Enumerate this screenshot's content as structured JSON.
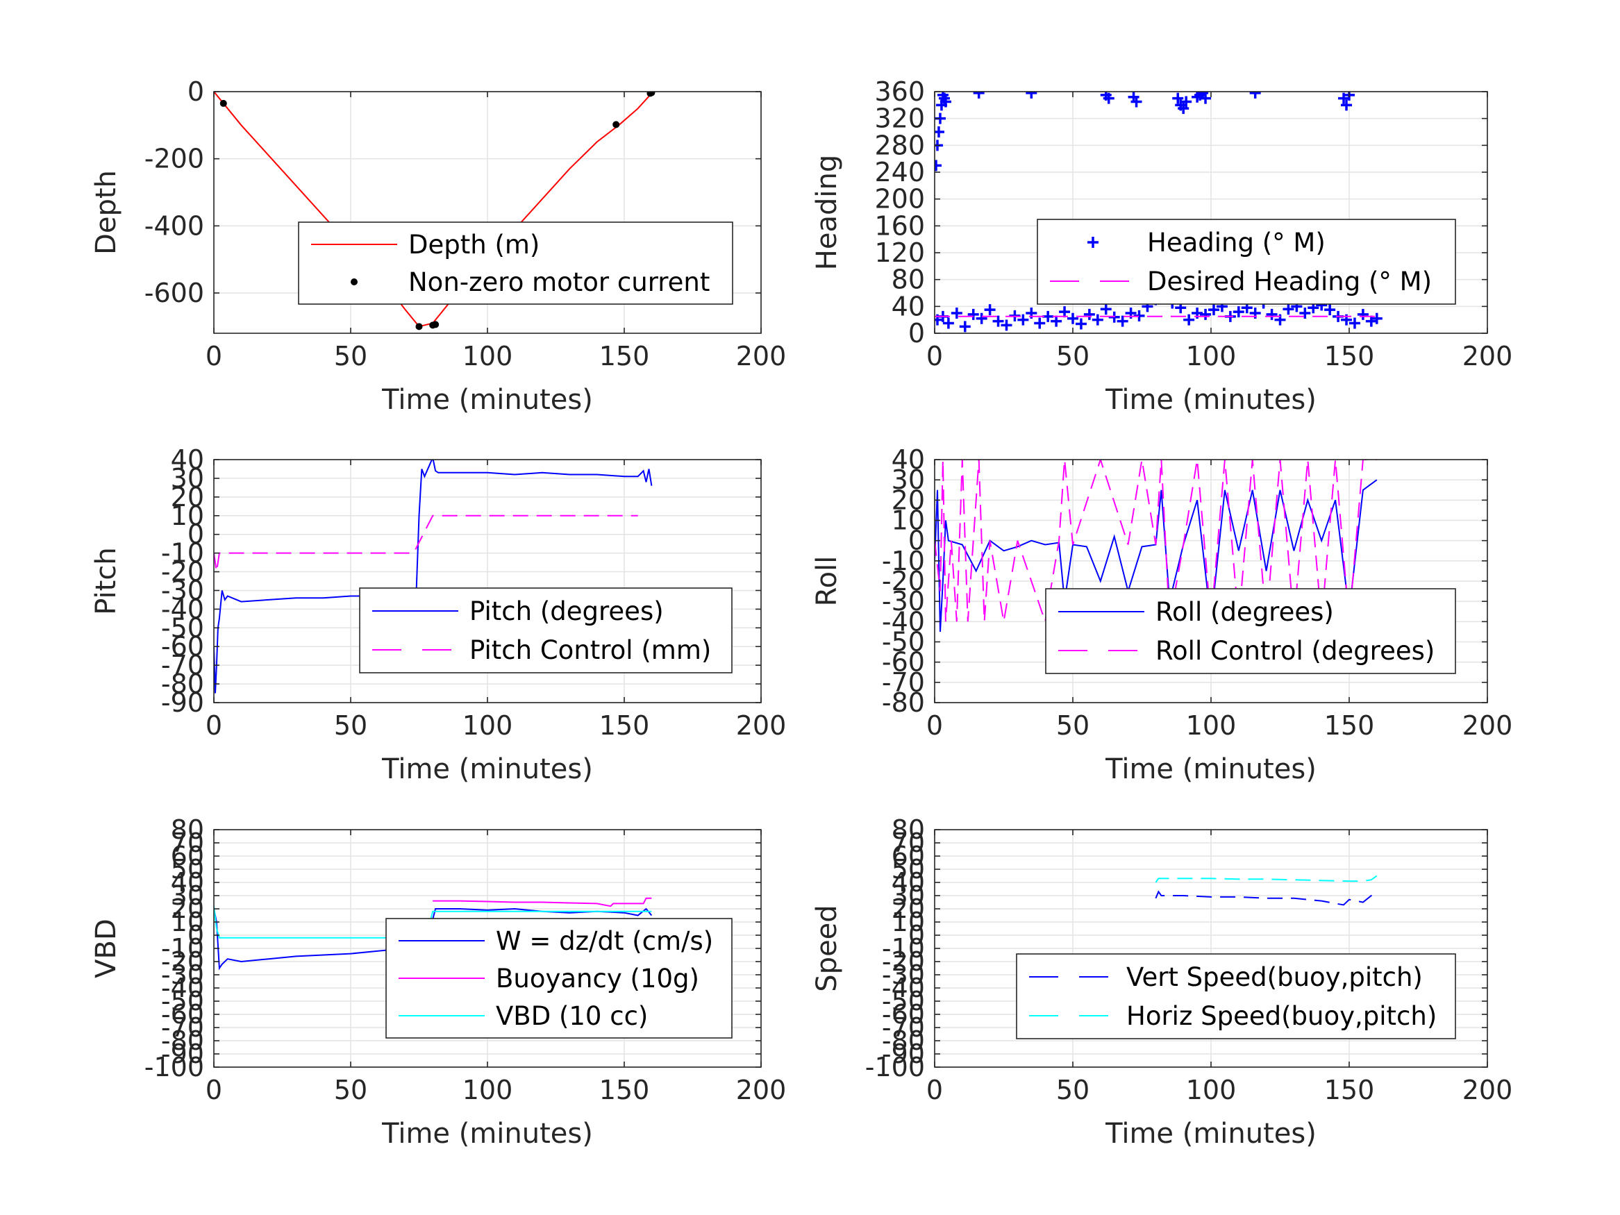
{
  "chart_data": [
    {
      "id": "depth",
      "type": "line",
      "xlabel": "Time (minutes)",
      "ylabel": "Depth",
      "xlim": [
        0,
        200
      ],
      "ylim": [
        -720,
        0
      ],
      "xticks": [
        0,
        50,
        100,
        150,
        200
      ],
      "yticks": [
        0,
        -200,
        -400,
        -600
      ],
      "ytick_labels": [
        "0",
        "-200",
        "-400",
        "-600"
      ],
      "grid": true,
      "legend_position": "center-right",
      "series": [
        {
          "name": "Depth (m)",
          "style": "line",
          "color": "#ff0000",
          "x": [
            0,
            10,
            20,
            30,
            40,
            50,
            60,
            70,
            75,
            80,
            85,
            90,
            100,
            110,
            120,
            130,
            140,
            148,
            155,
            160
          ],
          "y": [
            0,
            -100,
            -190,
            -280,
            -370,
            -460,
            -545,
            -650,
            -700,
            -690,
            -640,
            -590,
            -500,
            -410,
            -320,
            -230,
            -150,
            -100,
            -50,
            -5
          ]
        },
        {
          "name": "Non-zero motor current",
          "style": "dot",
          "color": "#000000",
          "x": [
            3.5,
            75,
            80,
            81,
            147,
            159.5,
            160
          ],
          "y": [
            -35,
            -700,
            -696,
            -694,
            -98,
            -5,
            -3
          ]
        }
      ]
    },
    {
      "id": "heading",
      "type": "scatter",
      "xlabel": "Time (minutes)",
      "ylabel": "Heading",
      "xlim": [
        0,
        200
      ],
      "ylim": [
        0,
        360
      ],
      "xticks": [
        0,
        50,
        100,
        150,
        200
      ],
      "yticks": [
        0,
        40,
        80,
        120,
        160,
        200,
        240,
        280,
        320,
        360
      ],
      "ytick_labels": [
        "0",
        "40",
        "80",
        "120",
        "160",
        "200",
        "240",
        "280",
        "320",
        "360"
      ],
      "grid": true,
      "legend_position": "center-right",
      "series": [
        {
          "name": "Heading (° M)",
          "style": "plus",
          "color": "#0000ff",
          "x": [
            0.5,
            1,
            1.5,
            2,
            2.5,
            3,
            3.5,
            4,
            16,
            35,
            62,
            63,
            72,
            73,
            88,
            89,
            90,
            91,
            95,
            96,
            97,
            98,
            116,
            148,
            149,
            150,
            1,
            3,
            5,
            8,
            11,
            14,
            17,
            20,
            23,
            26,
            29,
            32,
            35,
            38,
            41,
            44,
            47,
            50,
            53,
            56,
            59,
            62,
            65,
            68,
            71,
            74,
            77,
            80,
            83,
            86,
            89,
            92,
            95,
            98,
            101,
            104,
            107,
            110,
            113,
            116,
            119,
            122,
            125,
            128,
            131,
            134,
            137,
            140,
            143,
            146,
            149,
            152,
            155,
            158,
            160
          ],
          "y": [
            250,
            280,
            300,
            320,
            340,
            355,
            350,
            345,
            358,
            358,
            355,
            350,
            352,
            345,
            350,
            340,
            335,
            345,
            352,
            355,
            358,
            350,
            358,
            350,
            340,
            355,
            20,
            25,
            15,
            30,
            10,
            28,
            22,
            35,
            18,
            12,
            26,
            20,
            30,
            15,
            25,
            18,
            32,
            22,
            14,
            28,
            20,
            36,
            24,
            18,
            30,
            26,
            40,
            50,
            55,
            45,
            38,
            20,
            30,
            28,
            35,
            40,
            25,
            32,
            38,
            30,
            45,
            28,
            20,
            36,
            40,
            30,
            38,
            42,
            35,
            25,
            20,
            15,
            28,
            18,
            22
          ]
        },
        {
          "name": "Desired Heading (° M)",
          "style": "dashed",
          "color": "#ff00ff",
          "x": [
            0,
            160
          ],
          "y": [
            25,
            25
          ]
        }
      ]
    },
    {
      "id": "pitch",
      "type": "line",
      "xlabel": "Time (minutes)",
      "ylabel": "Pitch",
      "xlim": [
        0,
        200
      ],
      "ylim": [
        -90,
        40
      ],
      "xticks": [
        0,
        50,
        100,
        150,
        200
      ],
      "yticks": [
        40,
        30,
        20,
        10,
        0,
        -10,
        -20,
        -30,
        -40,
        -50,
        -60,
        -70,
        -80,
        -90
      ],
      "ytick_labels": [
        "40",
        "30",
        "20",
        "10",
        "0",
        "-10",
        "-20",
        "-30",
        "-40",
        "-50",
        "-60",
        "-70",
        "-80",
        "-90"
      ],
      "grid": true,
      "legend_position": "center-right",
      "series": [
        {
          "name": "Pitch (degrees)",
          "style": "line",
          "color": "#0000ff",
          "x": [
            0,
            0.5,
            1,
            1.5,
            2,
            3,
            4,
            5,
            10,
            20,
            30,
            40,
            50,
            60,
            70,
            74,
            75,
            76,
            77,
            80,
            81,
            82,
            90,
            100,
            110,
            120,
            130,
            140,
            150,
            155,
            157,
            158,
            159,
            160
          ],
          "y": [
            -60,
            -85,
            -70,
            -50,
            -45,
            -30,
            -35,
            -33,
            -36,
            -35,
            -34,
            -34,
            -33,
            -33,
            -33,
            -30,
            10,
            35,
            31,
            41,
            34,
            33,
            33,
            33,
            32,
            33,
            32,
            32,
            31,
            31,
            34,
            28,
            35,
            26
          ]
        },
        {
          "name": "Pitch Control (mm)",
          "style": "dashed",
          "color": "#ff00ff",
          "x": [
            0,
            1,
            2,
            3,
            73,
            80,
            155
          ],
          "y": [
            -10,
            -20,
            -10,
            -10,
            -10,
            10,
            10
          ]
        }
      ]
    },
    {
      "id": "roll",
      "type": "line",
      "xlabel": "Time (minutes)",
      "ylabel": "Roll",
      "xlim": [
        0,
        200
      ],
      "ylim": [
        -80,
        40
      ],
      "xticks": [
        0,
        50,
        100,
        150,
        200
      ],
      "yticks": [
        40,
        30,
        20,
        10,
        0,
        -10,
        -20,
        -30,
        -40,
        -50,
        -60,
        -70,
        -80
      ],
      "ytick_labels": [
        "40",
        "30",
        "20",
        "10",
        "0",
        "-10",
        "-20",
        "-30",
        "-40",
        "-50",
        "-60",
        "-70",
        "-80"
      ],
      "grid": true,
      "legend_position": "center-right",
      "series": [
        {
          "name": "Roll (degrees)",
          "style": "line",
          "color": "#0000ff",
          "x": [
            0,
            1,
            2,
            3,
            4,
            5,
            10,
            15,
            20,
            25,
            30,
            35,
            40,
            45,
            47,
            50,
            55,
            60,
            65,
            70,
            75,
            80,
            82,
            85,
            90,
            95,
            100,
            105,
            110,
            115,
            120,
            125,
            130,
            135,
            140,
            145,
            150,
            155,
            160
          ],
          "y": [
            -10,
            25,
            -45,
            -20,
            10,
            0,
            -2,
            -15,
            0,
            -5,
            -3,
            0,
            -2,
            -1,
            -30,
            -2,
            -3,
            -20,
            2,
            -25,
            -3,
            -2,
            25,
            -30,
            -2,
            20,
            -40,
            25,
            -5,
            25,
            -15,
            25,
            -5,
            20,
            0,
            20,
            -35,
            25,
            30
          ]
        },
        {
          "name": "Roll Control (degrees)",
          "style": "dashed",
          "color": "#ff00ff",
          "x": [
            0,
            2,
            3,
            4,
            6,
            8,
            10,
            12,
            14,
            16,
            18,
            20,
            25,
            30,
            40,
            45,
            47,
            50,
            60,
            70,
            75,
            80,
            82,
            85,
            90,
            95,
            100,
            105,
            110,
            115,
            120,
            125,
            130,
            135,
            140,
            145,
            150,
            155,
            160
          ],
          "y": [
            0,
            -25,
            40,
            -40,
            0,
            -40,
            40,
            -40,
            0,
            40,
            -40,
            0,
            -40,
            0,
            -40,
            0,
            40,
            -2,
            40,
            -2,
            40,
            -2,
            40,
            -40,
            -2,
            40,
            -40,
            40,
            -40,
            40,
            -40,
            40,
            -40,
            40,
            -40,
            40,
            -40,
            40,
            40
          ]
        }
      ]
    },
    {
      "id": "vbd",
      "type": "line",
      "xlabel": "Time (minutes)",
      "ylabel": "VBD",
      "xlim": [
        0,
        200
      ],
      "ylim": [
        -100,
        80
      ],
      "xticks": [
        0,
        50,
        100,
        150,
        200
      ],
      "yticks": [
        80,
        70,
        60,
        50,
        40,
        30,
        20,
        10,
        0,
        -10,
        -20,
        -30,
        -40,
        -50,
        -60,
        -70,
        -80,
        -90,
        -100
      ],
      "ytick_labels": [
        "80",
        "70",
        "60",
        "50",
        "40",
        "30",
        "20",
        "10",
        "0",
        "-10",
        "-20",
        "-30",
        "-40",
        "-50",
        "-60",
        "-70",
        "-80",
        "-90",
        "-100"
      ],
      "grid": true,
      "legend_position": "center-right",
      "series": [
        {
          "name": "W = dz/dt (cm/s)",
          "style": "line",
          "color": "#0000ff",
          "x": [
            0,
            1,
            2,
            3,
            5,
            10,
            20,
            30,
            40,
            50,
            60,
            70,
            73,
            75,
            76,
            77,
            80,
            81,
            90,
            100,
            110,
            120,
            130,
            140,
            150,
            155,
            158,
            160
          ],
          "y": [
            20,
            10,
            -25,
            -22,
            -18,
            -20,
            -18,
            -16,
            -15,
            -14,
            -12,
            -10,
            -8,
            8,
            10,
            6,
            12,
            20,
            20,
            19,
            20,
            18,
            17,
            18,
            17,
            15,
            20,
            15
          ]
        },
        {
          "name": "Buoyancy (10g)",
          "style": "line",
          "color": "#ff00ff",
          "x": [
            80,
            90,
            100,
            110,
            120,
            130,
            140,
            145,
            146,
            150,
            157,
            158,
            160
          ],
          "y": [
            26,
            26,
            25.5,
            25,
            25,
            24.5,
            24,
            22,
            24,
            24,
            24,
            28,
            28
          ]
        },
        {
          "name": "VBD (10 cc)",
          "style": "line",
          "color": "#00ffff",
          "x": [
            0,
            1,
            2,
            3,
            10,
            50,
            70,
            74,
            75,
            79,
            80,
            100,
            140,
            160
          ],
          "y": [
            22,
            5,
            -2,
            -2,
            -2,
            -2,
            -2,
            -2,
            10,
            10,
            18,
            18,
            18,
            18
          ]
        }
      ]
    },
    {
      "id": "speed",
      "type": "line",
      "xlabel": "Time (minutes)",
      "ylabel": "Speed",
      "xlim": [
        0,
        200
      ],
      "ylim": [
        -100,
        80
      ],
      "xticks": [
        0,
        50,
        100,
        150,
        200
      ],
      "yticks": [
        80,
        70,
        60,
        50,
        40,
        30,
        20,
        10,
        0,
        -10,
        -20,
        -30,
        -40,
        -50,
        -60,
        -70,
        -80,
        -90,
        -100
      ],
      "ytick_labels": [
        "80",
        "70",
        "60",
        "50",
        "40",
        "30",
        "20",
        "10",
        "0",
        "-10",
        "-20",
        "-30",
        "-40",
        "-50",
        "-60",
        "-70",
        "-80",
        "-90",
        "-100"
      ],
      "grid": true,
      "legend_position": "bottom-right",
      "series": [
        {
          "name": "Vert Speed(buoy,pitch)",
          "style": "dashed",
          "color": "#0000ff",
          "x": [
            80,
            81,
            82,
            90,
            100,
            110,
            120,
            130,
            140,
            145,
            148,
            150,
            155,
            158,
            160
          ],
          "y": [
            28,
            33,
            30,
            30,
            29,
            29,
            28,
            28,
            26,
            24,
            23,
            27,
            25,
            30,
            32
          ]
        },
        {
          "name": "Horiz Speed(buoy,pitch)",
          "style": "dashed",
          "color": "#00ffff",
          "x": [
            80,
            81,
            90,
            100,
            110,
            120,
            130,
            140,
            150,
            155,
            158,
            160
          ],
          "y": [
            40,
            43,
            43,
            43,
            42.5,
            42.5,
            42,
            41.5,
            41,
            41,
            42,
            45
          ]
        }
      ]
    }
  ]
}
